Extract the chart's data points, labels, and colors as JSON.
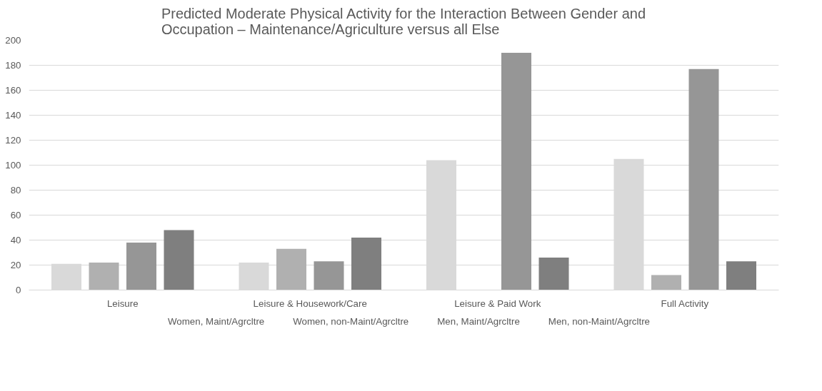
{
  "chart_data": {
    "type": "bar",
    "title": "Predicted Moderate Physical Activity for the Interaction Between Gender and Occupation – Maintenance/Agriculture versus all Else",
    "categories": [
      "Leisure",
      "Leisure & Housework/Care",
      "Leisure & Paid Work",
      "Full Activity"
    ],
    "series": [
      {
        "name": "Women, Maint/Agrcltre",
        "color": "#d9d9d9",
        "values": [
          21,
          22,
          104,
          105
        ]
      },
      {
        "name": "Women, non-Maint/Agrcltre",
        "color": "#b0b0b0",
        "values": [
          22,
          33,
          0,
          12
        ]
      },
      {
        "name": "Men, Maint/Agrcltre",
        "color": "#969696",
        "values": [
          38,
          23,
          190,
          177
        ]
      },
      {
        "name": "Men, non-Maint/Agrcltre",
        "color": "#7f7f7f",
        "values": [
          48,
          42,
          26,
          23
        ]
      }
    ],
    "ylim": [
      0,
      200
    ],
    "yticks": [
      0,
      20,
      40,
      60,
      80,
      100,
      120,
      140,
      160,
      180,
      200
    ],
    "grid": "y",
    "legend": "bottom"
  }
}
